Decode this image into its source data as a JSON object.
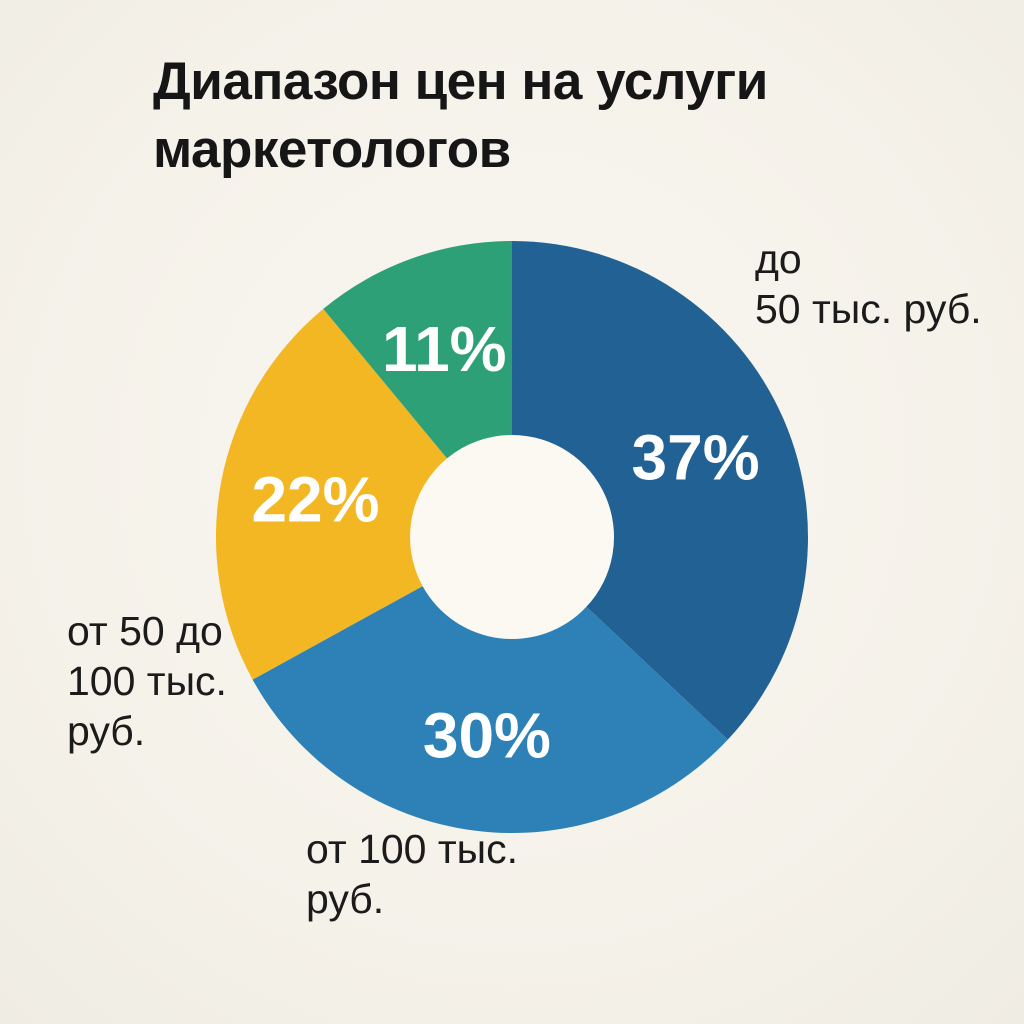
{
  "header": {
    "title": "Диапазон цен на услуги маркетологов",
    "title_display": "Диапазон цен на услуги\nмаркетологов"
  },
  "colors": {
    "background": "#f5f2ea",
    "donut_hole": "#fbf9f2",
    "title_text": "#161616",
    "callout_text": "#1b1b1b",
    "percent_text": "#ffffff"
  },
  "chart_data": {
    "type": "pie",
    "subtype": "donut",
    "title": "Диапазон цен на услуги маркетологов",
    "start_angle_deg": 0,
    "direction": "clockwise",
    "inner_radius_ratio": 0.345,
    "legend": "none",
    "slices": [
      {
        "label": "до 50 тыс. руб.",
        "value": 37,
        "percent_label": "37%",
        "color": "#226193",
        "callout": "до\n50 тыс. руб."
      },
      {
        "label": "от 100 тыс. руб.",
        "value": 30,
        "percent_label": "30%",
        "color": "#2e81b6",
        "callout": "от 100 тыс.\nруб."
      },
      {
        "label": "от 50 до 100 тыс. руб.",
        "value": 22,
        "percent_label": "22%",
        "color": "#f2b723",
        "callout": "от 50 до\n100 тыс.\nруб."
      },
      {
        "label": null,
        "value": 11,
        "percent_label": "11%",
        "color": "#2da078",
        "callout": null
      }
    ]
  }
}
